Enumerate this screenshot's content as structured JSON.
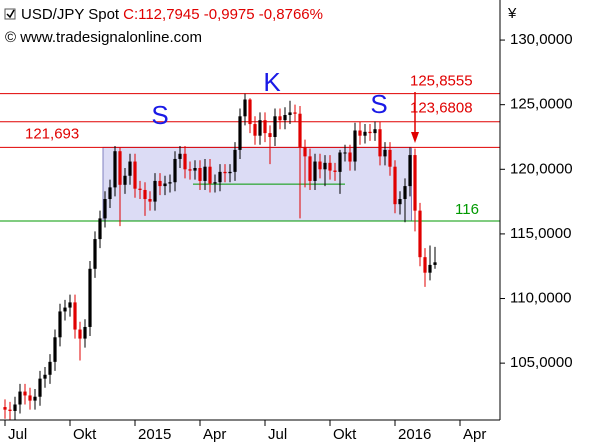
{
  "chart_data": {
    "type": "candlestick",
    "title": "USD/JPY Spot",
    "subtitle": "C:112,7945 -0,9975 -0,8766%",
    "source": "© www.tradesignalonline.com",
    "currency_symbol": "¥",
    "annotations": [
      "S",
      "K",
      "S"
    ],
    "up_color": "#000000",
    "down_color": "#e00000",
    "xlim": [
      -1,
      99
    ],
    "xticks": [
      {
        "value": 0,
        "label": "Jul"
      },
      {
        "value": 13,
        "label": "Okt"
      },
      {
        "value": 26,
        "label": "2015"
      },
      {
        "value": 39,
        "label": "Apr"
      },
      {
        "value": 52,
        "label": "Jul"
      },
      {
        "value": 65,
        "label": "Okt"
      },
      {
        "value": 78,
        "label": "2016"
      },
      {
        "value": 91,
        "label": "Apr"
      }
    ],
    "ylim": [
      100.6,
      133.1
    ],
    "yticks": [
      {
        "value": 105,
        "label": "105,0000"
      },
      {
        "value": 110,
        "label": "110,0000"
      },
      {
        "value": 115,
        "label": "115,0000"
      },
      {
        "value": 120,
        "label": "120,0000"
      },
      {
        "value": 125,
        "label": "125,0000"
      },
      {
        "value": 130,
        "label": "130,0000"
      }
    ],
    "levels": [
      {
        "value": 125.8555,
        "label": "125,8555",
        "color": "#e00000"
      },
      {
        "value": 123.6808,
        "label": "123,6808",
        "color": "#e00000"
      },
      {
        "value": 121.693,
        "label": "121,693",
        "color": "#e00000"
      },
      {
        "value": 116,
        "label": "116",
        "color": "#009900"
      },
      {
        "value": 118.85,
        "color": "#009900"
      }
    ],
    "open": [
      101.6,
      101.4,
      101.3,
      101.8,
      102.8,
      102.5,
      102.1,
      102.4,
      103.8,
      104.1,
      105.1,
      107.0,
      109.0,
      109.3,
      109.7,
      107.6,
      106.9,
      107.8,
      112.3,
      114.6,
      116.2,
      117.7,
      118.6,
      121.4,
      118.8,
      119.5,
      120.6,
      118.5,
      118.4,
      117.7,
      117.5,
      119.1,
      118.7,
      118.9,
      119.0,
      120.8,
      121.2,
      120.0,
      119.9,
      120.1,
      119.1,
      120.2,
      118.9,
      119.0,
      119.8,
      119.7,
      119.8,
      121.5,
      124.1,
      125.4,
      123.5,
      122.6,
      123.8,
      122.8,
      122.5,
      124.1,
      123.8,
      124.2,
      124.4,
      124.3,
      121.7,
      121.0,
      119.1,
      120.6,
      120.0,
      120.5,
      119.9,
      119.8,
      121.3,
      121.3,
      120.6,
      123.0,
      122.6,
      122.9,
      122.8,
      123.1,
      121.0,
      121.5,
      120.2,
      117.3,
      117.7,
      118.7,
      121.1,
      116.8,
      113.2,
      112.0,
      112.6
    ],
    "high": [
      102.2,
      102.0,
      102.4,
      103.4,
      103.4,
      103.1,
      103.0,
      104.4,
      104.7,
      105.7,
      107.6,
      109.6,
      109.9,
      110.3,
      110.3,
      108.2,
      108.4,
      112.9,
      115.2,
      116.8,
      118.3,
      119.2,
      121.8,
      121.7,
      120.1,
      121.2,
      121.2,
      119.1,
      119.0,
      118.3,
      119.7,
      119.7,
      119.5,
      119.6,
      121.4,
      121.8,
      121.8,
      120.6,
      120.7,
      120.7,
      120.8,
      120.8,
      119.6,
      120.4,
      120.4,
      120.4,
      122.1,
      124.7,
      125.86,
      125.5,
      124.1,
      124.4,
      124.4,
      123.4,
      124.7,
      124.7,
      124.8,
      125.3,
      125.0,
      124.9,
      122.3,
      121.6,
      121.2,
      121.2,
      121.1,
      121.1,
      120.5,
      121.5,
      121.9,
      121.9,
      123.6,
      123.7,
      123.5,
      123.5,
      123.7,
      123.7,
      122.1,
      122.1,
      120.7,
      118.3,
      119.3,
      121.7,
      121.6,
      117.4,
      113.9,
      114.1,
      114.0
    ],
    "low": [
      100.7,
      100.6,
      100.6,
      101.1,
      101.8,
      101.4,
      101.4,
      101.7,
      103.1,
      103.4,
      104.4,
      106.3,
      108.3,
      108.6,
      106.9,
      105.2,
      106.2,
      107.1,
      111.6,
      113.9,
      115.5,
      117.0,
      117.9,
      115.6,
      118.1,
      118.8,
      117.8,
      117.7,
      116.4,
      116.8,
      116.8,
      118.0,
      118.0,
      118.2,
      118.3,
      120.1,
      119.3,
      119.2,
      119.2,
      118.4,
      118.4,
      118.2,
      118.2,
      118.3,
      119.0,
      119.0,
      119.1,
      120.8,
      123.4,
      122.8,
      121.9,
      121.9,
      122.1,
      120.4,
      121.8,
      123.1,
      123.1,
      123.5,
      123.7,
      116.2,
      118.6,
      118.4,
      118.4,
      119.3,
      118.7,
      119.2,
      119.1,
      118.1,
      120.6,
      119.9,
      119.9,
      121.9,
      122.0,
      122.2,
      122.2,
      120.3,
      120.3,
      119.5,
      116.6,
      116.5,
      115.9,
      117.9,
      115.2,
      112.5,
      110.9,
      111.4,
      112.3
    ],
    "close": [
      101.4,
      101.3,
      101.8,
      102.8,
      102.5,
      102.1,
      102.4,
      103.8,
      104.1,
      105.1,
      107.0,
      109.0,
      109.3,
      109.7,
      107.6,
      106.9,
      107.8,
      112.3,
      114.6,
      116.2,
      117.7,
      118.6,
      121.4,
      118.8,
      119.5,
      120.6,
      118.5,
      118.4,
      117.7,
      117.5,
      119.1,
      118.7,
      118.9,
      119.0,
      120.8,
      121.2,
      120.0,
      119.9,
      120.1,
      119.1,
      120.2,
      118.9,
      119.0,
      119.8,
      119.7,
      119.8,
      121.5,
      124.1,
      125.4,
      123.5,
      122.6,
      123.8,
      122.8,
      122.5,
      124.1,
      123.8,
      124.2,
      124.4,
      124.3,
      121.7,
      121.0,
      119.1,
      120.6,
      120.0,
      120.5,
      119.9,
      119.8,
      121.3,
      121.3,
      120.6,
      123.0,
      122.6,
      122.9,
      122.8,
      123.1,
      121.0,
      121.5,
      120.2,
      117.3,
      117.7,
      118.7,
      121.1,
      116.8,
      113.2,
      112.0,
      112.6,
      112.8
    ]
  }
}
